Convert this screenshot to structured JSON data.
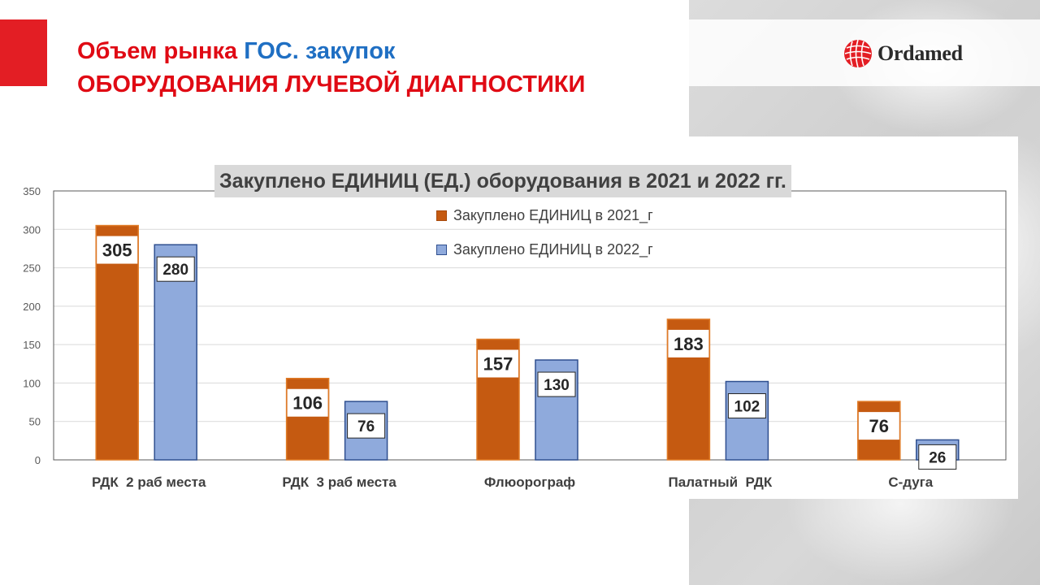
{
  "header": {
    "title_part1": "Объем рынка ",
    "title_part2": "ГОС.",
    "title_part3": " закупок",
    "title_line2": "ОБОРУДОВАНИЯ ЛУЧЕВОЙ ДИАГНОСТИКИ",
    "logo_text": "Ordamed",
    "logo_icon": "ordamed-globe-icon"
  },
  "colors": {
    "accent_red": "#e31e24",
    "title_blue": "#1f6fc3",
    "series_2021": "#c55a11",
    "series_2022": "#8faadc"
  },
  "chart_data": {
    "type": "bar",
    "title": "Закуплено ЕДИНИЦ  (ЕД.) оборудования в 2021 и 2022 гг.",
    "categories": [
      "РДК  2 раб места",
      "РДК  3 раб места",
      "Флюорограф",
      "Палатный  РДК",
      "С-дуга"
    ],
    "series": [
      {
        "name": "Закуплено ЕДИНИЦ в 2021_г",
        "values": [
          305,
          106,
          157,
          183,
          76
        ],
        "color": "#c55a11"
      },
      {
        "name": "Закуплено ЕДИНИЦ в 2022_г",
        "values": [
          280,
          76,
          130,
          102,
          26
        ],
        "color": "#8faadc"
      }
    ],
    "ylim": [
      0,
      350
    ],
    "yticks": [
      "0",
      "50",
      "100",
      "150",
      "200",
      "250",
      "300",
      "350"
    ],
    "xlabel": "",
    "ylabel": "",
    "grid": true,
    "legend_position": "top-center"
  }
}
